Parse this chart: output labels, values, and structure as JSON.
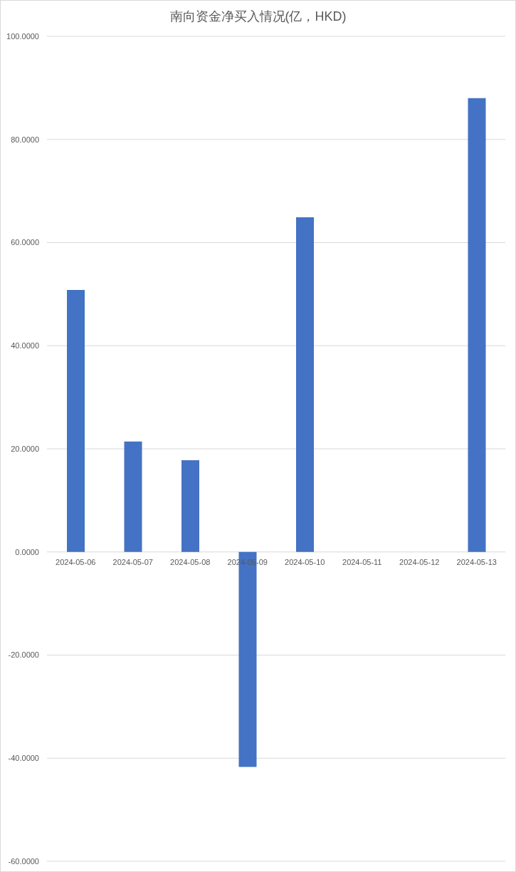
{
  "chart_data": {
    "type": "bar",
    "title": "南向资金净买入情况(亿，HKD)",
    "categories": [
      "2024-05-06",
      "2024-05-07",
      "2024-05-08",
      "2024-05-09",
      "2024-05-10",
      "2024-05-11",
      "2024-05-12",
      "2024-05-13"
    ],
    "values": [
      50.8,
      21.4,
      17.8,
      -41.7,
      64.9,
      null,
      null,
      88.0
    ],
    "color": "#4472c4",
    "ylim": [
      -60,
      100
    ],
    "yticks": [
      {
        "value": -60,
        "label": "-60.0000"
      },
      {
        "value": -40,
        "label": "-40.0000"
      },
      {
        "value": -20,
        "label": "-20.0000"
      },
      {
        "value": 0,
        "label": "0.0000"
      },
      {
        "value": 20,
        "label": "20.0000"
      },
      {
        "value": 40,
        "label": "40.0000"
      },
      {
        "value": 60,
        "label": "60.0000"
      },
      {
        "value": 80,
        "label": "80.0000"
      },
      {
        "value": 100,
        "label": "100.0000"
      }
    ],
    "grid": "y"
  }
}
